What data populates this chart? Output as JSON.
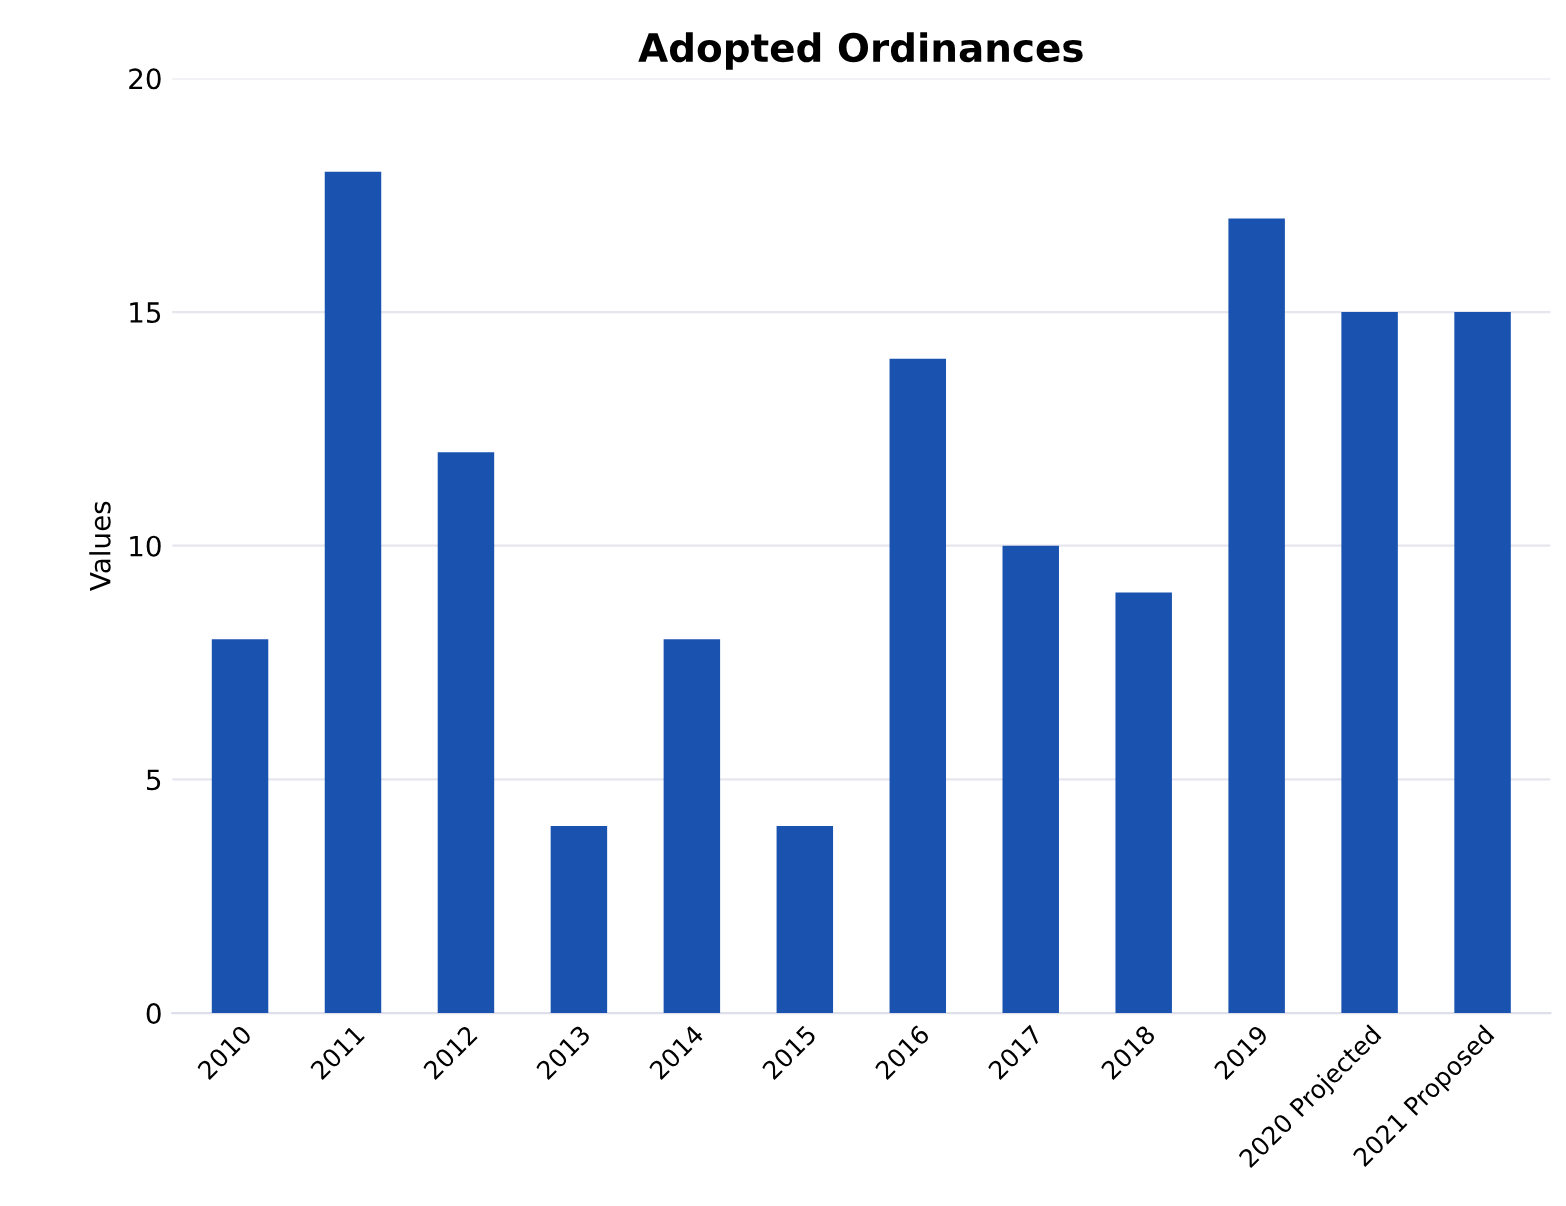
{
  "chart_data": {
    "type": "bar",
    "title": "Adopted Ordinances",
    "ylabel": "Values",
    "categories": [
      "2010",
      "2011",
      "2012",
      "2013",
      "2014",
      "2015",
      "2016",
      "2017",
      "2018",
      "2019",
      "2020 Projected",
      "2021 Proposed"
    ],
    "values": [
      8,
      18,
      12,
      4,
      8,
      4,
      14,
      10,
      9,
      17,
      15,
      15
    ],
    "color": "#1a52b0",
    "ylim": [
      0,
      20
    ],
    "yticks": [
      0,
      5,
      10,
      15,
      20
    ],
    "grid": "y"
  }
}
